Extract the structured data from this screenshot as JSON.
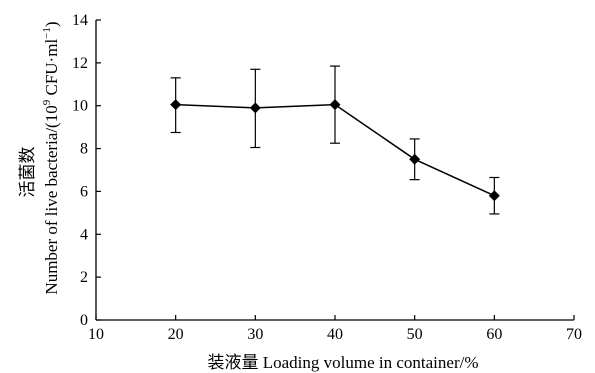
{
  "chart_data": {
    "type": "line",
    "title": "",
    "xlabel": "装液量 Loading volume in container/%",
    "ylabel_cn": "活菌数",
    "ylabel_en": "Number of live bacteria/(10",
    "ylabel_sup": "9",
    "ylabel_unit": " CFU·ml",
    "ylabel_unit_sup": "−1",
    "ylabel_close": ")",
    "xlim": [
      10,
      70
    ],
    "ylim": [
      0,
      14
    ],
    "xticks": [
      10,
      20,
      30,
      40,
      50,
      60,
      70
    ],
    "yticks": [
      0,
      2,
      4,
      6,
      8,
      10,
      12,
      14
    ],
    "grid": false,
    "marker": "diamond",
    "series": [
      {
        "x": [
          20,
          30,
          40,
          50,
          60
        ],
        "values": [
          10.05,
          9.9,
          10.05,
          7.5,
          5.8
        ],
        "err_upper": [
          11.3,
          11.7,
          11.85,
          8.45,
          6.65
        ],
        "err_lower": [
          8.75,
          8.05,
          8.25,
          6.55,
          4.95
        ]
      }
    ]
  }
}
